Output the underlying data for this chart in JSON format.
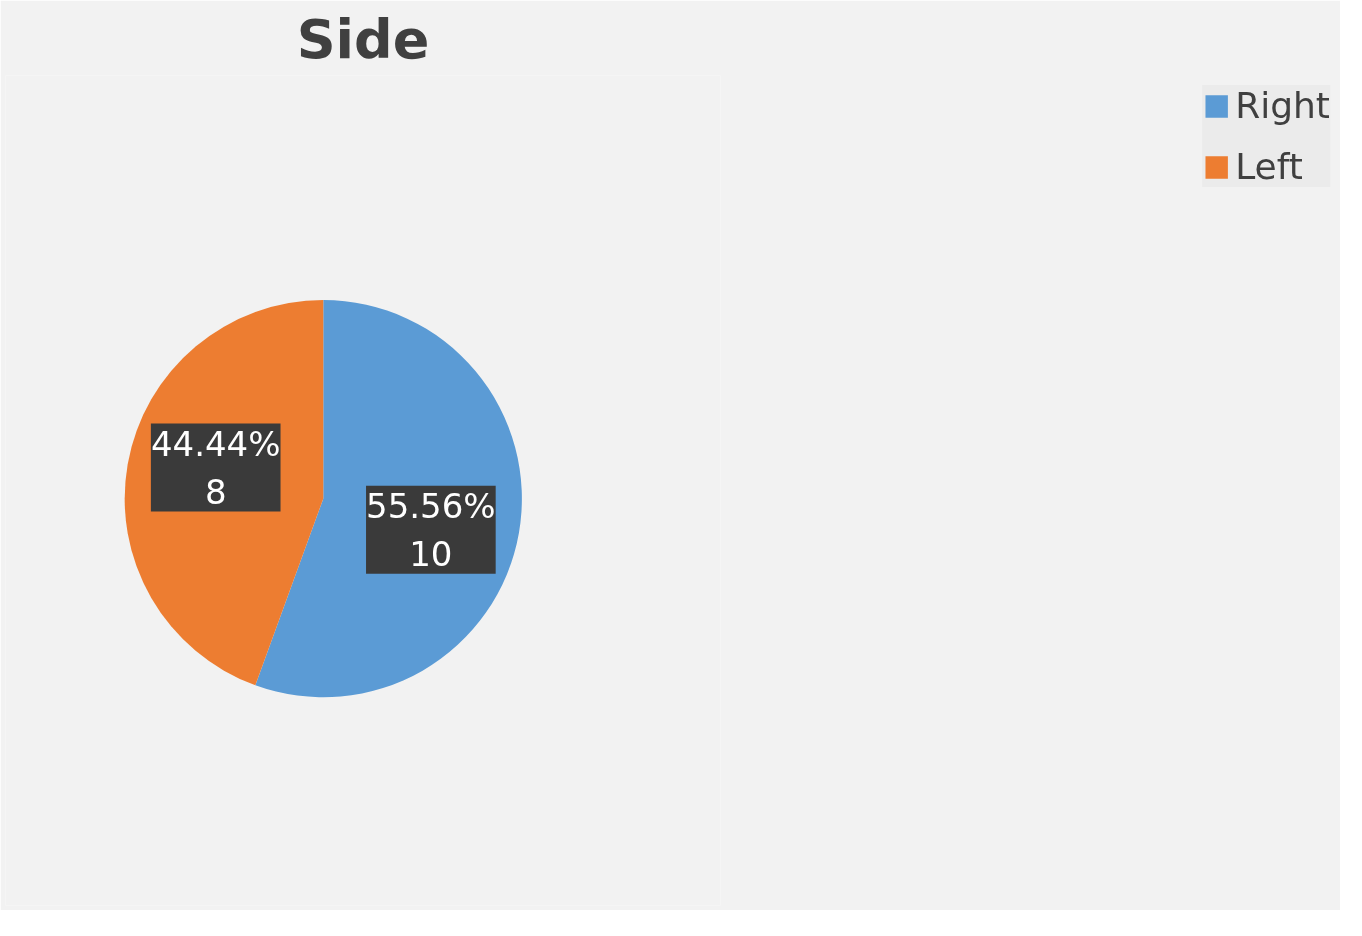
{
  "chart_data": {
    "type": "pie",
    "title": "Side",
    "categories": [
      "Right",
      "Left"
    ],
    "values": [
      10,
      8
    ],
    "colors": [
      "#5b9bd5",
      "#ed7d31"
    ],
    "value_labels": [
      "55.56%\n10",
      "44.44%\n8"
    ],
    "legend": "right"
  }
}
